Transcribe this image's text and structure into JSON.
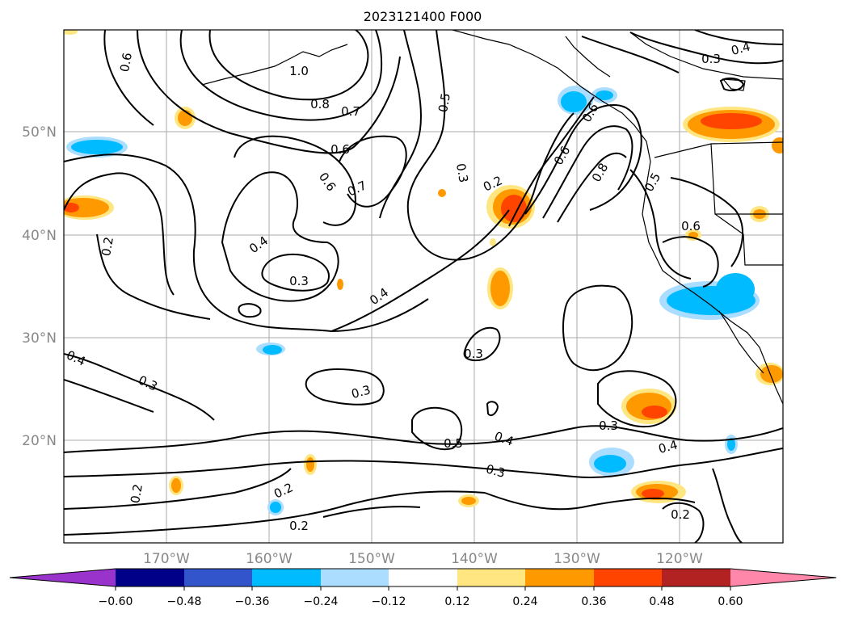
{
  "title": "2023121400 F000",
  "map": {
    "lat_labels": [
      "50°N",
      "40°N",
      "30°N",
      "20°N"
    ],
    "lon_labels": [
      "170°W",
      "160°W",
      "150°W",
      "140°W",
      "130°W",
      "120°W"
    ],
    "lat_range": [
      10,
      60
    ],
    "lon_range": [
      -180,
      -110
    ],
    "grid": true,
    "axis_label_color": "#888888"
  },
  "contour_labels": [
    {
      "text": "0.6"
    },
    {
      "text": "1.0"
    },
    {
      "text": "0.8"
    },
    {
      "text": "0.7"
    },
    {
      "text": "0.6"
    },
    {
      "text": "0.6"
    },
    {
      "text": "0.7"
    },
    {
      "text": "0.5"
    },
    {
      "text": "0.3"
    },
    {
      "text": "0.2"
    },
    {
      "text": "0.3"
    },
    {
      "text": "0.4"
    },
    {
      "text": "0.2"
    },
    {
      "text": "0.4"
    },
    {
      "text": "0.3"
    },
    {
      "text": "0.3"
    },
    {
      "text": "0.3"
    },
    {
      "text": "0.5"
    },
    {
      "text": "0.4"
    },
    {
      "text": "0.3"
    },
    {
      "text": "0.3"
    },
    {
      "text": "0.4"
    },
    {
      "text": "0.2"
    },
    {
      "text": "0.2"
    },
    {
      "text": "0.2"
    },
    {
      "text": "0.2"
    },
    {
      "text": "0.3"
    },
    {
      "text": "0.4"
    },
    {
      "text": "0.6"
    },
    {
      "text": "0.8"
    },
    {
      "text": "0.5"
    },
    {
      "text": "0.6"
    },
    {
      "text": "0.4"
    },
    {
      "text": "0.6"
    }
  ],
  "colorbar": {
    "ticks": [
      "−0.60",
      "−0.48",
      "−0.36",
      "−0.24",
      "−0.12",
      "0.12",
      "0.24",
      "0.36",
      "0.48",
      "0.60"
    ],
    "colors": [
      "#9933cc",
      "#000088",
      "#3355cc",
      "#00bbff",
      "#aaddff",
      "#ffffff",
      "#ffe680",
      "#ff9900",
      "#ff4400",
      "#b22222",
      "#ff88aa"
    ]
  }
}
